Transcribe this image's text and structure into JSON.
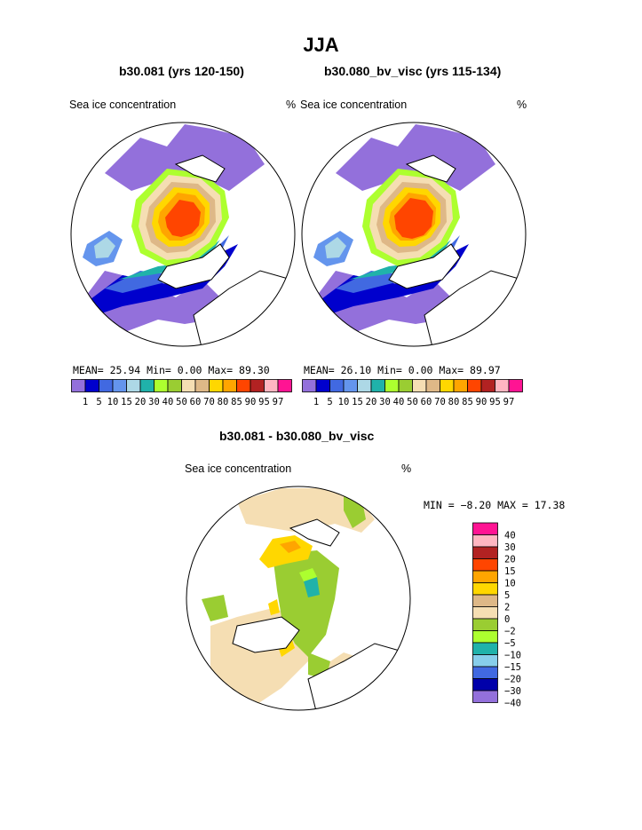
{
  "page": {
    "title": "JJA",
    "bottom_title": "b30.081 - b30.080_bv_visc"
  },
  "colors": {
    "conc_scale": [
      "#9370DB",
      "#0000CD",
      "#4169E1",
      "#6495ED",
      "#ADD8E6",
      "#20B2AA",
      "#ADFF2F",
      "#9ACD32",
      "#F5DEB3",
      "#DEB887",
      "#FFD700",
      "#FFA500",
      "#FF4500",
      "#B22222",
      "#FFB6C1",
      "#FF1493"
    ],
    "diff_scale": [
      "#9370DB",
      "#0000AA",
      "#4169E1",
      "#87CEEB",
      "#20B2AA",
      "#ADFF2F",
      "#9ACD32",
      "#F5DEB3",
      "#DEB887",
      "#FFD700",
      "#FFA500",
      "#FF4500",
      "#B22222",
      "#FFB6C1",
      "#FF1493"
    ],
    "land": "#ffffff",
    "coast": "#000000"
  },
  "chart_data": [
    {
      "type": "heatmap",
      "panel": "top-left",
      "title": "b30.081 (yrs 120-150)",
      "left_label": "Sea ice concentration",
      "right_label": "%",
      "stats": {
        "mean_label": "MEAN=",
        "mean": "25.94",
        "min_label": "Min=",
        "min": "0.00",
        "max_label": "Max=",
        "max": "89.30"
      },
      "colorbar_levels": [
        "1",
        "5",
        "10",
        "15",
        "20",
        "30",
        "40",
        "50",
        "60",
        "70",
        "80",
        "85",
        "90",
        "95",
        "97"
      ]
    },
    {
      "type": "heatmap",
      "panel": "top-right",
      "title": "b30.080_bv_visc (yrs 115-134)",
      "left_label": "Sea ice concentration",
      "right_label": "%",
      "stats": {
        "mean_label": "MEAN=",
        "mean": "26.10",
        "min_label": "Min=",
        "min": "0.00",
        "max_label": "Max=",
        "max": "89.97"
      },
      "colorbar_levels": [
        "1",
        "5",
        "10",
        "15",
        "20",
        "30",
        "40",
        "50",
        "60",
        "70",
        "80",
        "85",
        "90",
        "95",
        "97"
      ]
    },
    {
      "type": "heatmap",
      "panel": "bottom",
      "title": "b30.081 - b30.080_bv_visc",
      "left_label": "Sea ice concentration",
      "right_label": "%",
      "stats": {
        "min_label": "MIN =",
        "min": "−8.20",
        "max_label": "MAX =",
        "max": "17.38"
      },
      "colorbar_levels": [
        "40",
        "30",
        "20",
        "15",
        "10",
        "5",
        "2",
        "0",
        "−2",
        "−5",
        "−10",
        "−15",
        "−20",
        "−30",
        "−40"
      ]
    }
  ]
}
